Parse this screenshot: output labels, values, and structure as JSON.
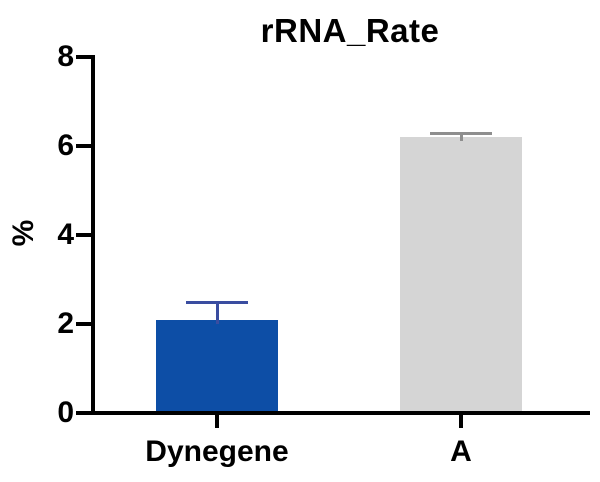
{
  "chart_data": {
    "type": "bar",
    "title": "rRNA_Rate",
    "ylabel": "%",
    "xlabel": "",
    "ylim": [
      0,
      8
    ],
    "yticks": [
      0,
      2,
      4,
      6,
      8
    ],
    "categories": [
      "Dynegene",
      "A"
    ],
    "values": [
      2.1,
      6.2
    ],
    "errors_upper": [
      0.38,
      0.08
    ],
    "bar_colors": [
      "#0d4ea6",
      "#d5d5d5"
    ],
    "error_bar_colors": [
      "#3a4da0",
      "#8e8e8e"
    ],
    "axis_color": "#000000",
    "text_color": "#000000",
    "background_color": "#ffffff",
    "grid": false,
    "legend": "none"
  }
}
